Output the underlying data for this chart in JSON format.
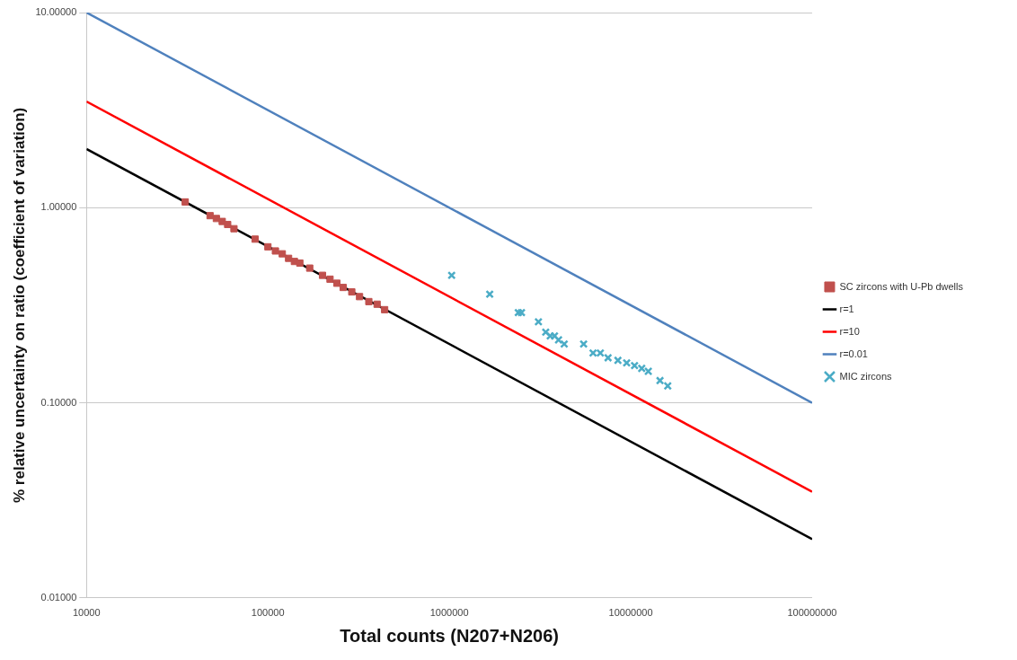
{
  "chart_data": {
    "type": "scatter",
    "xlabel": "Total counts (N207+N206)",
    "ylabel": "% relative uncertainty on ratio (coefficient of variation)",
    "log": "xy",
    "grid": "y",
    "legend": "right",
    "xlim": [
      10000,
      100000000
    ],
    "xticks": [
      10000,
      100000,
      1000000,
      10000000,
      100000000
    ],
    "ylim": [
      0.01,
      10
    ],
    "yticks": [
      {
        "value": 0.01,
        "label": "0.01000"
      },
      {
        "value": 0.1,
        "label": "0.10000"
      },
      {
        "value": 1,
        "label": "1.00000"
      },
      {
        "value": 10,
        "label": "10.00000"
      }
    ],
    "series": [
      {
        "name": "SC zircons with U-Pb dwells",
        "marker": "square",
        "color": "#c0504d",
        "x": [
          35000,
          48000,
          52000,
          56000,
          60000,
          65000,
          85000,
          100000,
          110000,
          120000,
          130000,
          140000,
          150000,
          170000,
          200000,
          220000,
          240000,
          260000,
          290000,
          320000,
          360000,
          400000,
          440000
        ],
        "values": [
          1.07,
          0.91,
          0.88,
          0.85,
          0.82,
          0.78,
          0.69,
          0.63,
          0.6,
          0.58,
          0.55,
          0.53,
          0.52,
          0.49,
          0.45,
          0.43,
          0.41,
          0.39,
          0.37,
          0.35,
          0.33,
          0.32,
          0.3
        ]
      },
      {
        "name": "r=1",
        "type": "line",
        "marker": "none",
        "color": "#000000",
        "x": [
          10000,
          100000000
        ],
        "values": [
          2,
          0.02
        ]
      },
      {
        "name": "r=10",
        "type": "line",
        "marker": "none",
        "color": "#ff0000",
        "x": [
          10000,
          100000000
        ],
        "values": [
          3.5,
          0.035
        ]
      },
      {
        "name": "r=0.01",
        "type": "line",
        "marker": "none",
        "color": "#4f81bd",
        "x": [
          10000,
          100000000
        ],
        "values": [
          10,
          0.1
        ]
      },
      {
        "name": "MIC zircons",
        "marker": "cross",
        "color": "#4bacc6",
        "x": [
          1030000,
          1670000,
          2400000,
          2500000,
          3100000,
          3400000,
          3600000,
          3800000,
          4000000,
          4300000,
          5500000,
          6200000,
          6800000,
          7500000,
          8500000,
          9500000,
          10500000,
          11500000,
          12500000,
          14500000,
          16000000
        ],
        "values": [
          0.45,
          0.36,
          0.29,
          0.29,
          0.26,
          0.23,
          0.22,
          0.22,
          0.21,
          0.2,
          0.2,
          0.18,
          0.18,
          0.17,
          0.165,
          0.16,
          0.155,
          0.15,
          0.145,
          0.13,
          0.122
        ]
      }
    ]
  }
}
